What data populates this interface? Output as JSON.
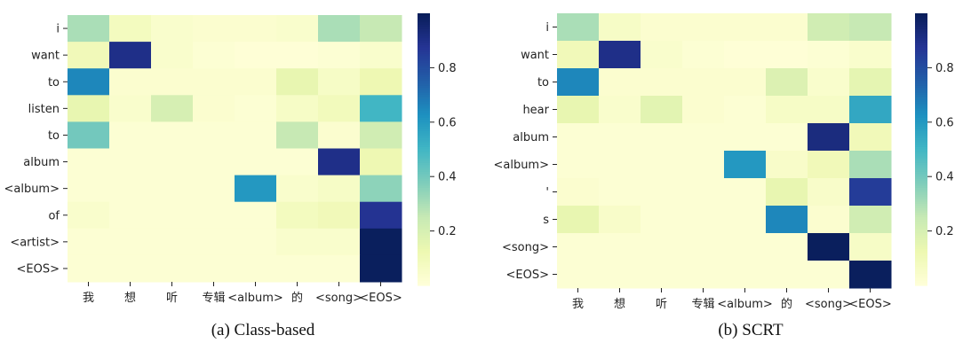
{
  "chart_data": [
    {
      "type": "heatmap",
      "caption": "(a) Class-based",
      "x_labels": [
        "我",
        "想",
        "听",
        "专辑",
        "<album>",
        "的",
        "<song>",
        "<EOS>"
      ],
      "y_labels": [
        "i",
        "want",
        "to",
        "listen",
        "to",
        "album",
        "<album>",
        "of",
        "<artist>",
        "<EOS>"
      ],
      "values": [
        [
          0.3,
          0.08,
          0.04,
          0.03,
          0.03,
          0.04,
          0.3,
          0.25
        ],
        [
          0.1,
          0.9,
          0.04,
          0.02,
          0.01,
          0.01,
          0.02,
          0.04
        ],
        [
          0.65,
          0.03,
          0.03,
          0.03,
          0.03,
          0.14,
          0.06,
          0.12
        ],
        [
          0.14,
          0.04,
          0.2,
          0.03,
          0.02,
          0.06,
          0.09,
          0.5
        ],
        [
          0.4,
          0.02,
          0.02,
          0.02,
          0.02,
          0.25,
          0.03,
          0.22
        ],
        [
          0.02,
          0.02,
          0.02,
          0.02,
          0.02,
          0.02,
          0.9,
          0.12
        ],
        [
          0.02,
          0.02,
          0.02,
          0.02,
          0.6,
          0.04,
          0.06,
          0.35
        ],
        [
          0.04,
          0.02,
          0.02,
          0.02,
          0.02,
          0.08,
          0.1,
          0.88
        ],
        [
          0.02,
          0.02,
          0.02,
          0.02,
          0.02,
          0.04,
          0.04,
          0.99
        ],
        [
          0.02,
          0.02,
          0.02,
          0.02,
          0.02,
          0.02,
          0.02,
          0.99
        ]
      ],
      "vmin": 0.0,
      "vmax": 1.0,
      "colorbar_ticks": [
        "0.2",
        "0.4",
        "0.6",
        "0.8"
      ],
      "colormap": "YlGnBu"
    },
    {
      "type": "heatmap",
      "caption": "(b) SCRT",
      "x_labels": [
        "我",
        "想",
        "听",
        "专辑",
        "<album>",
        "的",
        "<song>",
        "<EOS>"
      ],
      "y_labels": [
        "i",
        "want",
        "to",
        "hear",
        "album",
        "<album>",
        "'",
        "s",
        "<song>",
        "<EOS>"
      ],
      "values": [
        [
          0.3,
          0.06,
          0.03,
          0.03,
          0.03,
          0.03,
          0.22,
          0.25
        ],
        [
          0.1,
          0.9,
          0.04,
          0.02,
          0.01,
          0.01,
          0.02,
          0.04
        ],
        [
          0.65,
          0.03,
          0.03,
          0.03,
          0.03,
          0.18,
          0.04,
          0.15
        ],
        [
          0.14,
          0.04,
          0.16,
          0.03,
          0.02,
          0.06,
          0.06,
          0.55
        ],
        [
          0.02,
          0.02,
          0.02,
          0.02,
          0.02,
          0.02,
          0.92,
          0.1
        ],
        [
          0.02,
          0.02,
          0.02,
          0.02,
          0.6,
          0.05,
          0.1,
          0.3
        ],
        [
          0.03,
          0.02,
          0.02,
          0.02,
          0.02,
          0.14,
          0.05,
          0.85
        ],
        [
          0.14,
          0.05,
          0.02,
          0.02,
          0.02,
          0.65,
          0.03,
          0.22
        ],
        [
          0.02,
          0.02,
          0.02,
          0.02,
          0.02,
          0.02,
          0.99,
          0.06
        ],
        [
          0.02,
          0.02,
          0.02,
          0.02,
          0.02,
          0.02,
          0.02,
          0.99
        ]
      ],
      "vmin": 0.0,
      "vmax": 1.0,
      "colorbar_ticks": [
        "0.2",
        "0.4",
        "0.6",
        "0.8"
      ],
      "colormap": "YlGnBu"
    }
  ]
}
